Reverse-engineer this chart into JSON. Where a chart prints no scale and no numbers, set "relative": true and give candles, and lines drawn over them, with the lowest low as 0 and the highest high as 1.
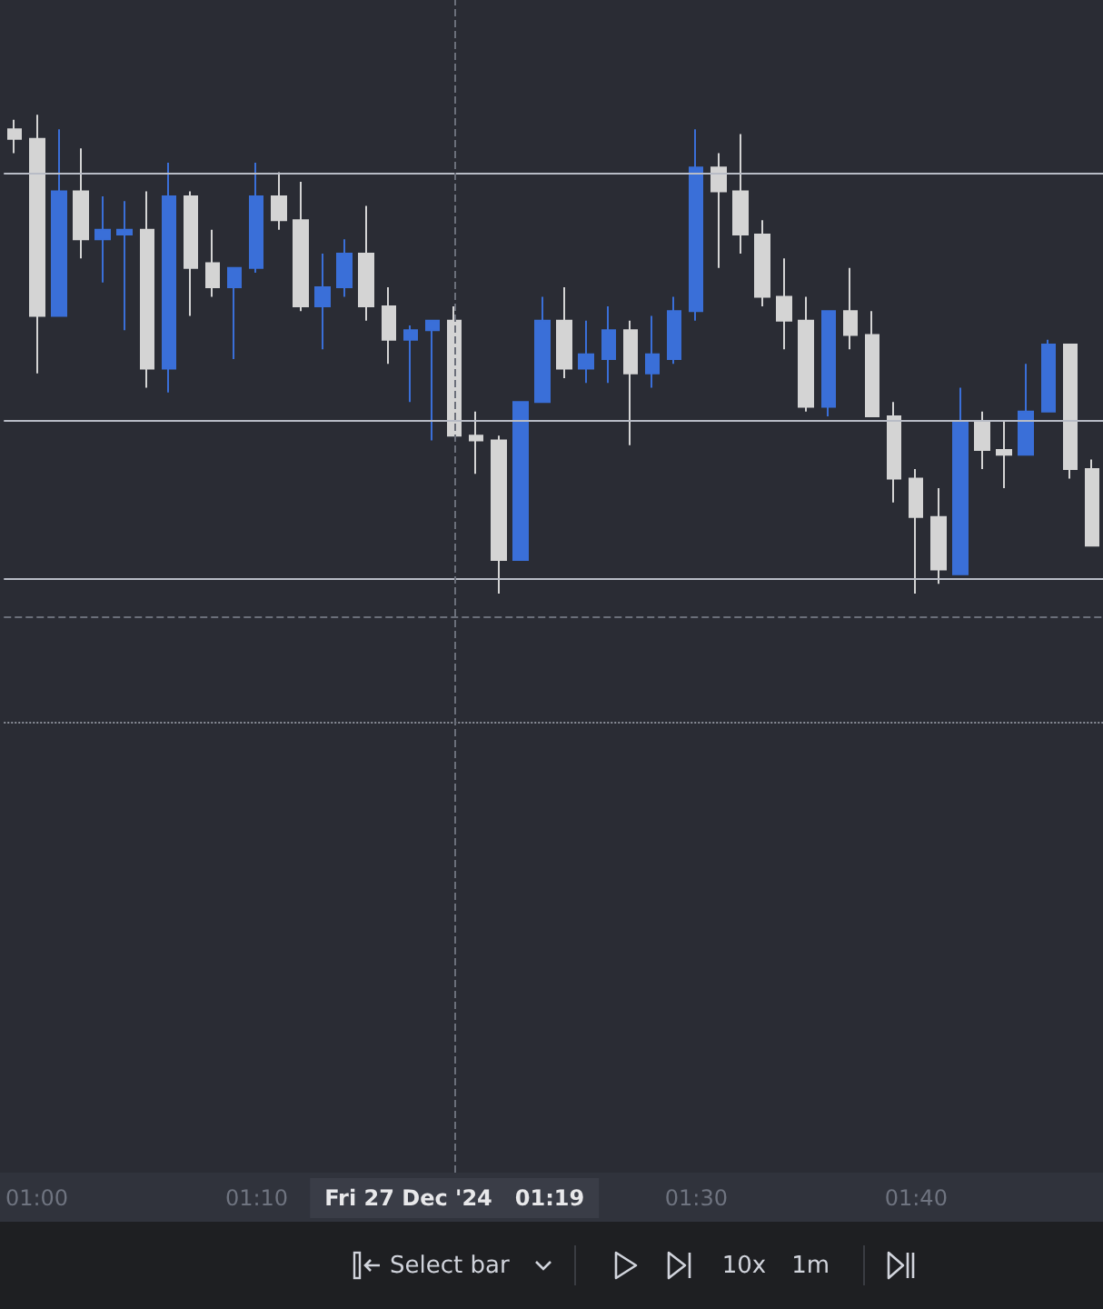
{
  "chart_data": {
    "type": "candlestick",
    "relative": true,
    "categories": [
      null,
      "01:00",
      null,
      null,
      null,
      null,
      null,
      null,
      null,
      null,
      null,
      "01:10",
      null,
      null,
      null,
      null,
      null,
      null,
      null,
      null,
      "Fri 27 Dec '24   01:19",
      null,
      null,
      null,
      null,
      null,
      null,
      null,
      null,
      null,
      null,
      "01:30",
      null,
      null,
      null,
      null,
      null,
      null,
      null,
      null,
      null,
      "01:40",
      null,
      null,
      null,
      null,
      null,
      null,
      null,
      null
    ],
    "ohlc": [
      [
        0.97,
        0.99,
        0.92,
        0.95
      ],
      [
        0.95,
        1.0,
        0.46,
        0.58
      ],
      [
        0.58,
        0.97,
        0.58,
        0.84
      ],
      [
        0.84,
        0.93,
        0.7,
        0.74
      ],
      [
        0.74,
        0.83,
        0.65,
        0.76
      ],
      [
        0.75,
        0.82,
        0.55,
        0.76
      ],
      [
        0.76,
        0.84,
        0.43,
        0.47
      ],
      [
        0.47,
        0.9,
        0.42,
        0.83
      ],
      [
        0.83,
        0.84,
        0.58,
        0.68
      ],
      [
        0.69,
        0.76,
        0.62,
        0.64
      ],
      [
        0.64,
        0.68,
        0.49,
        0.68
      ],
      [
        0.68,
        0.9,
        0.67,
        0.83
      ],
      [
        0.83,
        0.88,
        0.76,
        0.78
      ],
      [
        0.78,
        0.86,
        0.59,
        0.6
      ],
      [
        0.6,
        0.71,
        0.51,
        0.64
      ],
      [
        0.64,
        0.74,
        0.62,
        0.71
      ],
      [
        0.71,
        0.81,
        0.57,
        0.6
      ],
      [
        0.6,
        0.64,
        0.48,
        0.53
      ],
      [
        0.53,
        0.56,
        0.4,
        0.55
      ],
      [
        0.55,
        0.57,
        0.32,
        0.57
      ],
      [
        0.57,
        0.6,
        0.33,
        0.33
      ],
      [
        0.33,
        0.38,
        0.25,
        0.32
      ],
      [
        0.32,
        0.33,
        0.0,
        0.07
      ],
      [
        0.07,
        0.4,
        0.07,
        0.4
      ],
      [
        0.4,
        0.62,
        0.4,
        0.57
      ],
      [
        0.57,
        0.64,
        0.45,
        0.47
      ],
      [
        0.47,
        0.57,
        0.44,
        0.5
      ],
      [
        0.49,
        0.6,
        0.44,
        0.55
      ],
      [
        0.55,
        0.57,
        0.31,
        0.46
      ],
      [
        0.46,
        0.58,
        0.43,
        0.5
      ],
      [
        0.49,
        0.62,
        0.48,
        0.59
      ],
      [
        0.59,
        0.97,
        0.57,
        0.89
      ],
      [
        0.89,
        0.92,
        0.68,
        0.84
      ],
      [
        0.84,
        0.96,
        0.71,
        0.75
      ],
      [
        0.75,
        0.78,
        0.6,
        0.62
      ],
      [
        0.62,
        0.7,
        0.51,
        0.57
      ],
      [
        0.57,
        0.62,
        0.38,
        0.39
      ],
      [
        0.39,
        0.59,
        0.37,
        0.59
      ],
      [
        0.59,
        0.68,
        0.51,
        0.54
      ],
      [
        0.54,
        0.59,
        0.37,
        0.37
      ],
      [
        0.37,
        0.4,
        0.19,
        0.24
      ],
      [
        0.24,
        0.26,
        0.0,
        0.16
      ],
      [
        0.16,
        0.22,
        0.02,
        0.05
      ],
      [
        0.04,
        0.43,
        0.04,
        0.36
      ],
      [
        0.36,
        0.38,
        0.26,
        0.3
      ],
      [
        0.3,
        0.36,
        0.22,
        0.29
      ],
      [
        0.29,
        0.48,
        0.29,
        0.38
      ],
      [
        0.38,
        0.53,
        0.38,
        0.52
      ],
      [
        0.52,
        0.52,
        0.24,
        0.26
      ],
      [
        0.26,
        0.28,
        0.1,
        0.1
      ]
    ],
    "colors": [
      "#d4d4d4",
      "#d4d4d4",
      "#3a6fd8",
      "#d4d4d4",
      "#3a6fd8",
      "#3a6fd8",
      "#d4d4d4",
      "#3a6fd8",
      "#d4d4d4",
      "#d4d4d4",
      "#3a6fd8",
      "#3a6fd8",
      "#d4d4d4",
      "#d4d4d4",
      "#3a6fd8",
      "#3a6fd8",
      "#d4d4d4",
      "#d4d4d4",
      "#3a6fd8",
      "#3a6fd8",
      "#d4d4d4",
      "#d4d4d4",
      "#d4d4d4",
      "#3a6fd8",
      "#3a6fd8",
      "#d4d4d4",
      "#3a6fd8",
      "#3a6fd8",
      "#d4d4d4",
      "#3a6fd8",
      "#3a6fd8",
      "#3a6fd8",
      "#d4d4d4",
      "#d4d4d4",
      "#d4d4d4",
      "#d4d4d4",
      "#d4d4d4",
      "#3a6fd8",
      "#d4d4d4",
      "#d4d4d4",
      "#d4d4d4",
      "#d4d4d4",
      "#d4d4d4",
      "#3a6fd8",
      "#d4d4d4",
      "#d4d4d4",
      "#3a6fd8",
      "#3a6fd8",
      "#d4d4d4",
      "#d4d4d4"
    ],
    "ref_lines": [
      {
        "axis": "y",
        "value": 0.88,
        "label": null,
        "color": "#b8bcc6",
        "line_style": "solid"
      },
      {
        "axis": "y",
        "value": 0.36,
        "label": null,
        "color": "#b8bcc6",
        "line_style": "solid"
      },
      {
        "axis": "y",
        "value": 0.03,
        "label": null,
        "color": "#b8bcc6",
        "line_style": "solid"
      },
      {
        "axis": "y",
        "value": -0.05,
        "label": null,
        "color": "#6b6f7a",
        "line_style": "dashed"
      },
      {
        "axis": "y",
        "value": -0.27,
        "label": null,
        "color": "#8a8e98",
        "line_style": "dotted"
      },
      {
        "axis": "x",
        "value": "Fri 27 Dec '24   01:19",
        "label": null,
        "color": "#6b6f7a",
        "line_style": "dashed"
      }
    ],
    "annotations": [
      "Select bar",
      "10x",
      "1m"
    ]
  }
}
